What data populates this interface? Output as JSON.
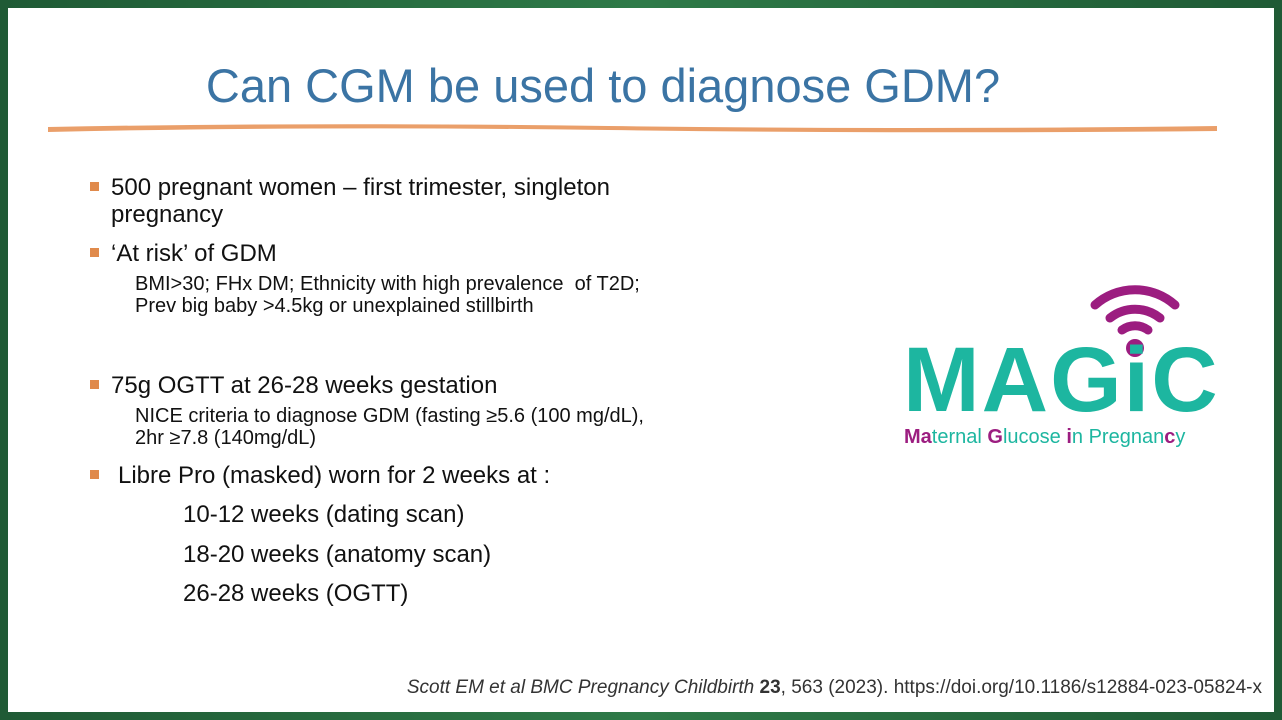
{
  "title": "Can CGM be used to diagnose GDM?",
  "bullets": [
    {
      "lines": [
        "500 pregnant women – first trimester, singleton",
        "pregnancy"
      ]
    },
    {
      "lines": [
        "‘At risk’ of GDM"
      ],
      "sub": [
        "BMI>30; FHx DM; Ethnicity with high prevalence  of T2D;",
        "Prev big baby >4.5kg or unexplained stillbirth"
      ]
    },
    {
      "lines": [
        "75g OGTT at 26-28 weeks gestation"
      ],
      "sub": [
        "NICE criteria to diagnose GDM (fasting ≥5.6 (100 mg/dL),",
        "2hr ≥7.8 (140mg/dL)"
      ]
    },
    {
      "lines": [
        "Libre Pro (masked) worn for 2 weeks at :"
      ],
      "items": [
        "10-12 weeks (dating scan)",
        "18-20 weeks (anatomy scan)",
        "26-28 weeks (OGTT)"
      ]
    }
  ],
  "logo": {
    "letters": [
      "M",
      "A",
      "G",
      "i",
      "C"
    ],
    "tagline": [
      {
        "text": "Ma",
        "highlight": true
      },
      {
        "text": "ternal ",
        "highlight": false
      },
      {
        "text": "G",
        "highlight": true
      },
      {
        "text": "lucose ",
        "highlight": false
      },
      {
        "text": "i",
        "highlight": true
      },
      {
        "text": "n Pregnan",
        "highlight": false
      },
      {
        "text": "c",
        "highlight": true
      },
      {
        "text": "y",
        "highlight": false
      }
    ]
  },
  "citation": [
    {
      "text": "Scott EM et al BMC Pregnancy Childbirth ",
      "style": "italic"
    },
    {
      "text": "23",
      "style": "bold"
    },
    {
      "text": ", 563 (2023). https://doi.org/10.1186/s12884-023-05824-x",
      "style": "normal"
    }
  ]
}
